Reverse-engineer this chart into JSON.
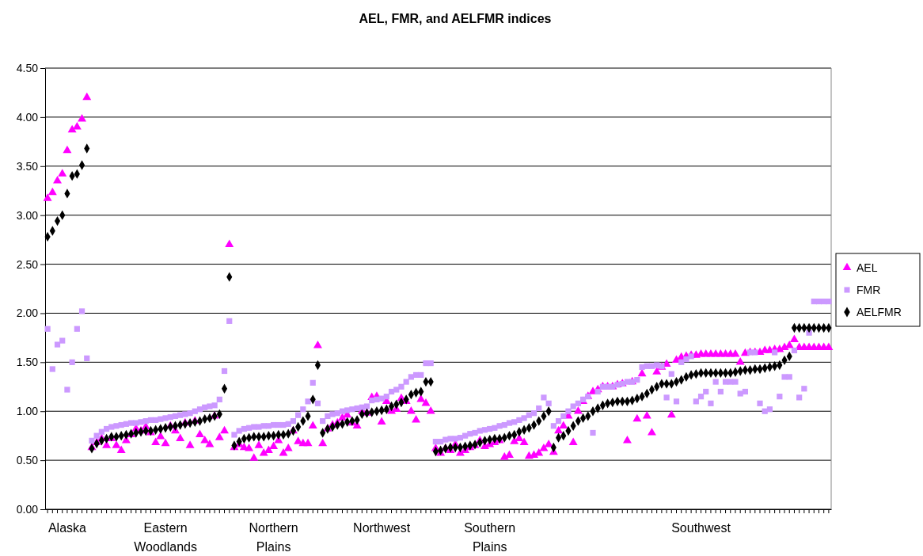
{
  "chart_data": {
    "type": "scatter",
    "title": "AEL, FMR, and AELFMR indices",
    "categories": [
      null,
      null,
      null,
      null,
      "Alaska",
      null,
      null,
      null,
      null,
      null,
      null,
      null,
      null,
      null,
      null,
      null,
      null,
      null,
      null,
      null,
      null,
      null,
      null,
      null,
      "Eastern Woodlands",
      null,
      null,
      null,
      null,
      null,
      null,
      null,
      null,
      null,
      null,
      null,
      null,
      null,
      null,
      null,
      null,
      null,
      null,
      null,
      null,
      null,
      "Northern Plains",
      null,
      null,
      null,
      null,
      null,
      null,
      null,
      null,
      null,
      null,
      null,
      null,
      null,
      null,
      null,
      null,
      null,
      null,
      null,
      null,
      null,
      "Northwest",
      null,
      null,
      null,
      null,
      null,
      null,
      null,
      null,
      null,
      null,
      null,
      null,
      null,
      null,
      null,
      null,
      null,
      null,
      null,
      null,
      null,
      "Southern Plains",
      null,
      null,
      null,
      null,
      null,
      null,
      null,
      null,
      null,
      null,
      null,
      null,
      null,
      null,
      null,
      null,
      null,
      null,
      null,
      null,
      null,
      null,
      null,
      null,
      null,
      null,
      null,
      null,
      null,
      null,
      null,
      null,
      null,
      null,
      null,
      null,
      null,
      null,
      null,
      null,
      null,
      null,
      "Southwest",
      null,
      null,
      null,
      null,
      null,
      null,
      null,
      null,
      null,
      null,
      null,
      null,
      null,
      null,
      null,
      null,
      null,
      null,
      null,
      null,
      null,
      null,
      null,
      null,
      null,
      null
    ],
    "ylim": [
      0,
      4.5
    ],
    "yticks": [
      {
        "value": 0,
        "label": "0.00"
      },
      {
        "value": 0.5,
        "label": "0.50"
      },
      {
        "value": 1,
        "label": "1.00"
      },
      {
        "value": 1.5,
        "label": "1.50"
      },
      {
        "value": 2,
        "label": "2.00"
      },
      {
        "value": 2.5,
        "label": "2.50"
      },
      {
        "value": 3,
        "label": "3.00"
      },
      {
        "value": 3.5,
        "label": "3.50"
      },
      {
        "value": 4,
        "label": "4.00"
      },
      {
        "value": 4.5,
        "label": "4.50"
      }
    ],
    "grid": "y",
    "legend": "right",
    "series": [
      {
        "name": "AEL",
        "color": "#ff00ff",
        "marker": "triangle",
        "values": [
          3.17,
          3.23,
          3.35,
          3.42,
          3.66,
          3.87,
          3.9,
          3.98,
          4.2,
          0.63,
          0.68,
          0.72,
          0.65,
          0.72,
          0.65,
          0.6,
          0.7,
          0.76,
          0.82,
          0.8,
          0.84,
          0.78,
          0.68,
          0.74,
          0.67,
          0.85,
          0.8,
          0.72,
          0.88,
          0.65,
          0.9,
          0.76,
          0.7,
          0.66,
          0.95,
          0.73,
          0.8,
          2.7,
          0.63,
          0.66,
          0.63,
          0.62,
          0.52,
          0.65,
          0.57,
          0.6,
          0.64,
          0.7,
          0.57,
          0.62,
          0.8,
          0.69,
          0.67,
          0.67,
          0.85,
          1.67,
          0.67,
          0.82,
          0.86,
          0.88,
          0.93,
          0.96,
          0.88,
          0.85,
          1.0,
          0.98,
          1.14,
          1.15,
          0.89,
          1.1,
          1.0,
          1.02,
          1.13,
          1.1,
          1.0,
          0.91,
          1.12,
          1.08,
          1.0,
          0.62,
          0.57,
          0.62,
          0.6,
          0.66,
          0.57,
          0.6,
          0.63,
          0.65,
          0.7,
          0.64,
          0.66,
          0.68,
          0.7,
          0.53,
          0.55,
          0.69,
          0.72,
          0.68,
          0.54,
          0.55,
          0.57,
          0.62,
          0.66,
          0.58,
          0.8,
          0.85,
          0.95,
          0.68,
          1.0,
          1.1,
          1.15,
          1.2,
          1.22,
          1.25,
          1.25,
          1.25,
          1.27,
          1.28,
          0.7,
          1.3,
          0.92,
          1.38,
          0.95,
          0.78,
          1.4,
          1.45,
          1.48,
          0.96,
          1.52,
          1.55,
          1.56,
          1.57,
          1.57,
          1.58,
          1.58,
          1.58,
          1.58,
          1.58,
          1.58,
          1.58,
          1.58,
          1.5,
          1.59,
          1.6,
          1.6,
          1.6,
          1.62,
          1.62,
          1.63,
          1.63,
          1.65,
          1.67,
          1.73,
          1.65,
          1.65,
          1.65,
          1.65,
          1.65,
          1.65,
          1.65
        ]
      },
      {
        "name": "FMR",
        "color": "#cc99ff",
        "marker": "square",
        "values": [
          1.84,
          1.43,
          1.68,
          1.72,
          1.22,
          1.5,
          1.84,
          2.02,
          1.54,
          0.7,
          0.75,
          0.79,
          0.82,
          0.84,
          0.85,
          0.86,
          0.87,
          0.88,
          0.88,
          0.89,
          0.9,
          0.91,
          0.91,
          0.92,
          0.93,
          0.94,
          0.95,
          0.96,
          0.97,
          0.98,
          1.0,
          1.02,
          1.04,
          1.05,
          1.06,
          1.12,
          1.41,
          1.92,
          0.76,
          0.8,
          0.82,
          0.83,
          0.84,
          0.84,
          0.85,
          0.85,
          0.86,
          0.86,
          0.86,
          0.87,
          0.9,
          0.96,
          1.02,
          1.1,
          1.29,
          1.08,
          0.9,
          0.95,
          0.97,
          0.98,
          1.0,
          1.01,
          1.02,
          1.03,
          1.04,
          1.05,
          1.11,
          1.12,
          1.13,
          1.15,
          1.2,
          1.22,
          1.25,
          1.3,
          1.35,
          1.37,
          1.37,
          1.49,
          1.49,
          0.69,
          0.69,
          0.71,
          0.72,
          0.72,
          0.73,
          0.75,
          0.77,
          0.78,
          0.8,
          0.81,
          0.82,
          0.83,
          0.85,
          0.86,
          0.88,
          0.89,
          0.91,
          0.93,
          0.96,
          0.98,
          1.03,
          1.14,
          1.08,
          0.85,
          0.9,
          0.95,
          1.0,
          1.05,
          1.08,
          1.12,
          1.15,
          0.78,
          1.2,
          1.25,
          1.25,
          1.25,
          1.27,
          1.28,
          1.3,
          1.3,
          1.32,
          1.45,
          1.46,
          1.46,
          1.47,
          1.46,
          1.14,
          1.38,
          1.1,
          1.5,
          1.53,
          1.56,
          1.1,
          1.15,
          1.2,
          1.08,
          1.3,
          1.2,
          1.3,
          1.3,
          1.3,
          1.18,
          1.2,
          1.6,
          1.6,
          1.08,
          1.0,
          1.02,
          1.6,
          1.15,
          1.35,
          1.35,
          1.62,
          1.14,
          1.23,
          1.8,
          2.12,
          2.12,
          2.12,
          2.12
        ]
      },
      {
        "name": "AELFMR",
        "color": "#000000",
        "marker": "diamond",
        "values": [
          2.78,
          2.84,
          2.94,
          3.0,
          3.22,
          3.4,
          3.42,
          3.51,
          3.68,
          0.62,
          0.67,
          0.7,
          0.72,
          0.74,
          0.74,
          0.75,
          0.76,
          0.77,
          0.78,
          0.79,
          0.8,
          0.8,
          0.81,
          0.82,
          0.83,
          0.84,
          0.85,
          0.86,
          0.87,
          0.88,
          0.89,
          0.9,
          0.92,
          0.93,
          0.95,
          0.97,
          1.23,
          2.37,
          0.65,
          0.69,
          0.72,
          0.73,
          0.74,
          0.74,
          0.74,
          0.75,
          0.75,
          0.76,
          0.76,
          0.77,
          0.8,
          0.84,
          0.9,
          0.95,
          1.12,
          1.47,
          0.78,
          0.82,
          0.84,
          0.86,
          0.87,
          0.89,
          0.9,
          0.91,
          0.97,
          0.98,
          0.99,
          1.0,
          1.01,
          1.02,
          1.05,
          1.07,
          1.09,
          1.12,
          1.17,
          1.19,
          1.2,
          1.3,
          1.3,
          0.59,
          0.6,
          0.62,
          0.63,
          0.63,
          0.63,
          0.64,
          0.65,
          0.66,
          0.68,
          0.7,
          0.71,
          0.72,
          0.72,
          0.73,
          0.75,
          0.76,
          0.79,
          0.81,
          0.83,
          0.86,
          0.9,
          0.95,
          1.0,
          0.63,
          0.73,
          0.75,
          0.8,
          0.85,
          0.9,
          0.93,
          0.95,
          1.0,
          1.03,
          1.06,
          1.08,
          1.09,
          1.1,
          1.1,
          1.1,
          1.11,
          1.13,
          1.15,
          1.18,
          1.22,
          1.25,
          1.28,
          1.28,
          1.28,
          1.3,
          1.32,
          1.35,
          1.37,
          1.38,
          1.39,
          1.39,
          1.39,
          1.39,
          1.39,
          1.39,
          1.39,
          1.4,
          1.41,
          1.42,
          1.42,
          1.43,
          1.43,
          1.44,
          1.45,
          1.46,
          1.47,
          1.52,
          1.56,
          1.85,
          1.85,
          1.85,
          1.85,
          1.85,
          1.85,
          1.85,
          1.85
        ]
      }
    ]
  }
}
